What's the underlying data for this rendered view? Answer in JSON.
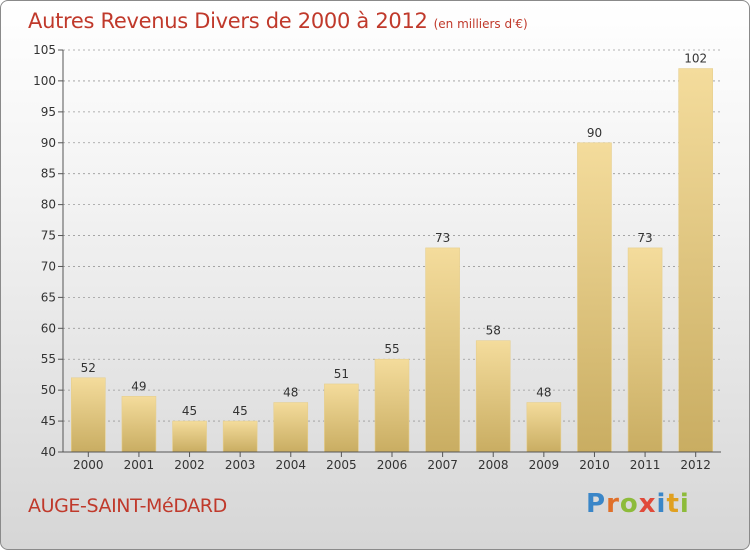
{
  "header": {
    "title": "Autres Revenus Divers de 2000 à 2012",
    "unit": "(en milliers d'€)"
  },
  "footer": {
    "commune": "AUGE-SAINT-MéDARD",
    "logo_letters": [
      {
        "char": "P",
        "color": "#3a86c8"
      },
      {
        "char": "r",
        "color": "#e0702a"
      },
      {
        "char": "o",
        "color": "#8dbb3a"
      },
      {
        "char": "x",
        "color": "#e04a3a"
      },
      {
        "char": "i",
        "color": "#3a86c8"
      },
      {
        "char": "t",
        "color": "#e0a020"
      },
      {
        "char": "i",
        "color": "#8dbb3a"
      }
    ]
  },
  "colors": {
    "bar_light": "#f4dc9c",
    "bar_dark": "#c9ad62",
    "grid": "#9a9a9a",
    "axis": "#555555",
    "text": "#333333"
  },
  "chart_data": {
    "type": "bar",
    "categories": [
      "2000",
      "2001",
      "2002",
      "2003",
      "2004",
      "2005",
      "2006",
      "2007",
      "2008",
      "2009",
      "2010",
      "2011",
      "2012"
    ],
    "values": [
      52,
      49,
      45,
      45,
      48,
      51,
      55,
      73,
      58,
      48,
      90,
      73,
      102
    ],
    "data_labels": [
      "52",
      "49",
      "45",
      "45",
      "48",
      "51",
      "55",
      "73",
      "58",
      "48",
      "90",
      "73",
      "102"
    ],
    "ylim": [
      40,
      105
    ],
    "yticks": [
      "40",
      "45",
      "50",
      "55",
      "60",
      "65",
      "70",
      "75",
      "80",
      "85",
      "90",
      "95",
      "100",
      "105"
    ],
    "grid": true,
    "xlabel": "",
    "ylabel": ""
  }
}
